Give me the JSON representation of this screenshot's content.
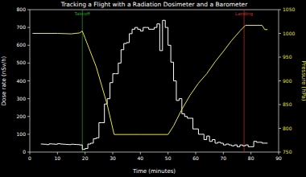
{
  "chart_data": {
    "type": "line",
    "title": "Tracking a Flight with a Radiation Dosimeter and a Barometer",
    "x_label": "Time (minutes)",
    "y_label": "Dose rate (nSv/h)",
    "y2_label": "Pressure (hPa)",
    "xlim": [
      0,
      90
    ],
    "xticks": [
      0,
      10,
      20,
      30,
      40,
      50,
      60,
      70,
      80,
      90
    ],
    "ylim": [
      0,
      800
    ],
    "yticks": [
      0,
      100,
      200,
      300,
      400,
      500,
      600,
      700,
      800
    ],
    "y2lim": [
      750,
      1050
    ],
    "y2ticks": [
      750,
      800,
      850,
      900,
      950,
      1000,
      1050
    ],
    "grid": false,
    "series": [
      {
        "color": "#ffffff",
        "line_style": "steps",
        "x": [
          4,
          5,
          6,
          7,
          8,
          9,
          10,
          11,
          12,
          13,
          14,
          15,
          16,
          17,
          18,
          19,
          20,
          21,
          22,
          23,
          24,
          25,
          26,
          27,
          28,
          29,
          30,
          31,
          32,
          33,
          34,
          35,
          36,
          37,
          38,
          39,
          40,
          41,
          42,
          43,
          44,
          45,
          46,
          47,
          48,
          49,
          50,
          51,
          52,
          53,
          54,
          55,
          56,
          57,
          58,
          59,
          60,
          61,
          62,
          63,
          64,
          65,
          66,
          67,
          68,
          69,
          70,
          71,
          72,
          73,
          74,
          75,
          76,
          77,
          78,
          79,
          80,
          81,
          82,
          83,
          84,
          85,
          86
        ],
        "values": [
          45,
          44,
          42,
          46,
          45,
          44,
          47,
          45,
          44,
          43,
          42,
          44,
          43,
          42,
          40,
          15,
          20,
          45,
          50,
          75,
          80,
          165,
          165,
          270,
          300,
          390,
          440,
          440,
          500,
          575,
          610,
          615,
          665,
          690,
          700,
          690,
          680,
          700,
          700,
          690,
          690,
          700,
          720,
          570,
          740,
          700,
          600,
          505,
          400,
          290,
          300,
          215,
          200,
          190,
          190,
          130,
          130,
          100,
          100,
          70,
          90,
          60,
          70,
          50,
          55,
          50,
          40,
          45,
          40,
          35,
          40,
          30,
          40,
          35,
          40,
          30,
          30,
          60,
          55,
          55,
          50,
          50,
          50
        ]
      },
      {
        "color": "#e6e632",
        "axis": "y2",
        "line_style": "solid",
        "x": [
          1,
          10,
          15,
          18,
          19,
          20,
          24,
          28,
          30.5,
          40,
          50,
          52,
          55,
          58,
          61,
          64,
          67,
          70,
          73,
          76,
          78,
          84,
          85,
          86
        ],
        "values": [
          1000,
          1000,
          999,
          1001,
          1005,
          990,
          930,
          850,
          787,
          787,
          787,
          805,
          840,
          870,
          895,
          915,
          940,
          962,
          985,
          1005,
          1017,
          1017,
          1008,
          1008
        ]
      }
    ],
    "annotations": [
      {
        "x": 19,
        "text": "Takeoff",
        "color": "#2e9e2e"
      },
      {
        "x": 77.5,
        "text": "Landing",
        "color": "#c83232"
      }
    ]
  }
}
